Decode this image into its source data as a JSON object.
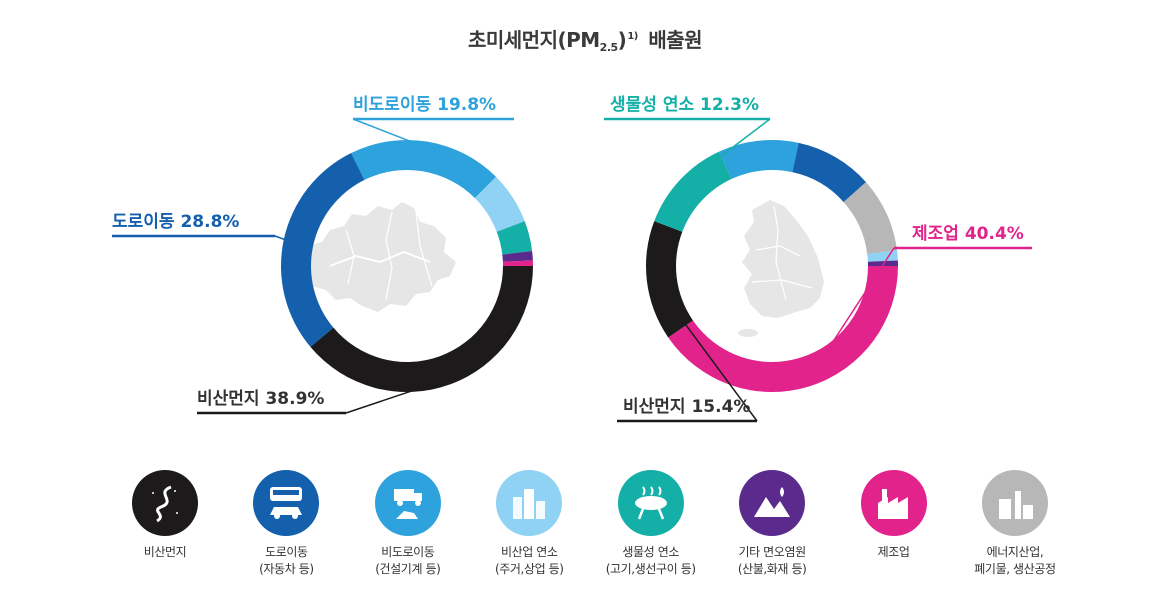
{
  "title": {
    "main": "초미세먼지(PM",
    "sub": "2.5",
    "sup": "1)",
    "tail": "배출원"
  },
  "colors": {
    "비산먼지": "#1d1a1b",
    "도로이동": "#1460ad",
    "비도로이동": "#2ea2dc",
    "비산업 연소": "#8fd2f3",
    "생물성 연소": "#14afa7",
    "기타 면오염원": "#5a2b8d",
    "제조업": "#e2238c",
    "에너지산업": "#b7b7b7",
    "map": "#e6e6e6"
  },
  "chart_data": [
    {
      "type": "pie",
      "title": "",
      "slices": [
        {
          "label": "비산먼지",
          "value": 38.9,
          "display": "비산먼지 38.9%"
        },
        {
          "label": "도로이동",
          "value": 28.8,
          "display": "도로이동 28.8%"
        },
        {
          "label": "비도로이동",
          "value": 19.8,
          "display": "비도로이동 19.8%"
        },
        {
          "label": "비산업 연소",
          "value": 6.7
        },
        {
          "label": "생물성 연소",
          "value": 3.9
        },
        {
          "label": "기타 면오염원",
          "value": 1.2
        },
        {
          "label": "제조업",
          "value": 0.7
        }
      ]
    },
    {
      "type": "pie",
      "title": "",
      "slices": [
        {
          "label": "제조업",
          "value": 40.4,
          "display": "제조업 40.4%"
        },
        {
          "label": "비산먼지",
          "value": 15.4,
          "display": "비산먼지 15.4%"
        },
        {
          "label": "생물성 연소",
          "value": 12.3,
          "display": "생물성 연소 12.3%"
        },
        {
          "label": "비도로이동",
          "value": 10.3
        },
        {
          "label": "도로이동",
          "value": 10.0
        },
        {
          "label": "에너지산업",
          "value": 9.6
        },
        {
          "label": "비산업 연소",
          "value": 1.3
        },
        {
          "label": "기타 면오염원",
          "value": 0.7
        }
      ]
    }
  ],
  "legend": [
    {
      "key": "비산먼지",
      "line1": "비산먼지",
      "line2": "",
      "icon": "winding-road-icon"
    },
    {
      "key": "도로이동",
      "line1": "도로이동",
      "line2": "(자동차 등)",
      "icon": "bus-car-icon"
    },
    {
      "key": "비도로이동",
      "line1": "비도로이동",
      "line2": "(건설기계 등)",
      "icon": "construction-machine-icon"
    },
    {
      "key": "비산업 연소",
      "line1": "비산업 연소",
      "line2": "(주거,상업 등)",
      "icon": "buildings-icon"
    },
    {
      "key": "생물성 연소",
      "line1": "생물성 연소",
      "line2": "(고기,생선구이 등)",
      "icon": "grill-icon"
    },
    {
      "key": "기타 면오염원",
      "line1": "기타 면오염원",
      "line2": "(산불,화재 등)",
      "icon": "mountain-fire-icon"
    },
    {
      "key": "제조업",
      "line1": "제조업",
      "line2": "",
      "icon": "factory-icon"
    },
    {
      "key": "에너지산업",
      "line1": "에너지산업,",
      "line2": "폐기물, 생산공정",
      "icon": "power-plant-icon"
    }
  ]
}
